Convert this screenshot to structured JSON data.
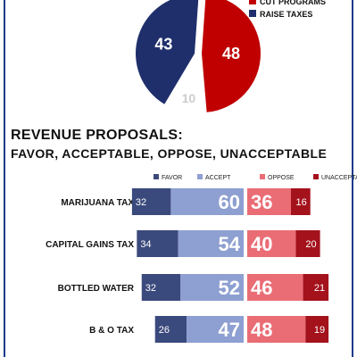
{
  "chart_data": [
    {
      "type": "pie",
      "legend": [
        {
          "label": "CUT PROGRAMS",
          "color": "#c00000"
        },
        {
          "label": "RAISE TAXES",
          "color": "#1f2f6b"
        }
      ],
      "slices": [
        {
          "label": "CUT PROGRAMS",
          "value": 48,
          "color": "#c00000"
        },
        {
          "label": "UNDECIDED",
          "value": 10,
          "color": "#ffffff"
        },
        {
          "label": "RAISE TAXES",
          "value": 43,
          "color": "#1f2f6b"
        }
      ],
      "data_labels": [
        "48",
        "10",
        "43"
      ],
      "legend_placement": "top-right"
    },
    {
      "type": "bar",
      "stacked": true,
      "diverging": true,
      "title": "REVENUE PROPOSALS:",
      "subtitle": "FAVOR, ACCEPTABLE, OPPOSE, UNACCEPTABLE",
      "categories": [
        "MARIJUANA TAX",
        "CAPITAL GAINS TAX",
        "BOTTLED WATER",
        "B & O TAX"
      ],
      "series": [
        {
          "name": "FAVOR",
          "color": "#3b4a7c",
          "values": [
            32,
            34,
            32,
            26
          ]
        },
        {
          "name": "ACCEPT",
          "color": "#8e9fd1",
          "values": [
            60,
            54,
            52,
            47
          ]
        },
        {
          "name": "OPPOSE",
          "color": "#ea6d75",
          "values": [
            36,
            40,
            46,
            48
          ]
        },
        {
          "name": "UNACCEPTABLE",
          "color": "#a4121c",
          "values": [
            16,
            20,
            21,
            19
          ]
        }
      ],
      "legend_placement": "top"
    }
  ]
}
